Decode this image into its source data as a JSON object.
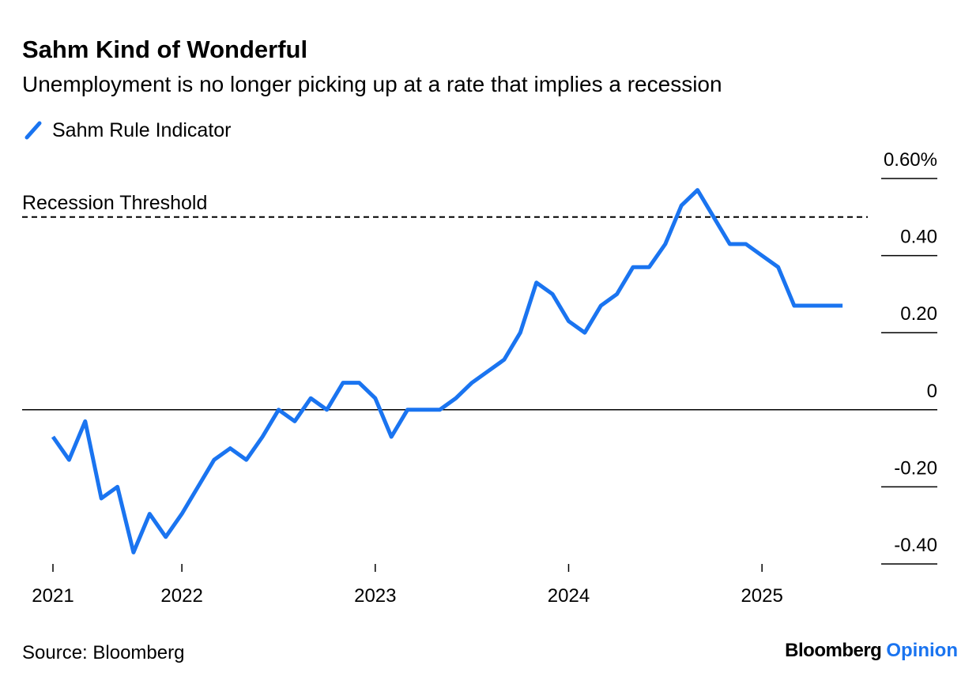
{
  "chart_data": {
    "type": "line",
    "title": "Sahm Kind of Wonderful",
    "subtitle": "Unemployment is no longer picking up at a rate that implies a recession",
    "categories": [
      "2021",
      null,
      null,
      null,
      null,
      null,
      null,
      null,
      "2022",
      null,
      null,
      null,
      null,
      null,
      null,
      null,
      null,
      null,
      null,
      null,
      "2023",
      null,
      null,
      null,
      null,
      null,
      null,
      null,
      null,
      null,
      null,
      null,
      "2024",
      null,
      null,
      null,
      null,
      null,
      null,
      null,
      null,
      null,
      null,
      null,
      "2025",
      null,
      null,
      null,
      null,
      null
    ],
    "series": [
      {
        "name": "Sahm Rule Indicator",
        "color": "#1a74f0",
        "values": [
          -0.07,
          -0.13,
          -0.03,
          -0.23,
          -0.2,
          -0.37,
          -0.27,
          -0.33,
          -0.27,
          -0.2,
          -0.13,
          -0.1,
          -0.13,
          -0.07,
          0,
          -0.03,
          0.03,
          0,
          0.07,
          0.07,
          0.03,
          -0.07,
          0,
          0,
          0,
          0.03,
          0.07,
          0.1,
          0.13,
          0.2,
          0.33,
          0.3,
          0.23,
          0.2,
          0.27,
          0.3,
          0.37,
          0.37,
          0.43,
          0.53,
          0.57,
          0.5,
          0.43,
          0.43,
          0.4,
          0.37,
          0.27,
          0.27,
          0.27,
          0.27
        ]
      }
    ],
    "threshold": {
      "label": "Recession Threshold",
      "value": 0.5
    },
    "ylim": [
      -0.4,
      0.6
    ],
    "yticks": [
      {
        "value": -0.4,
        "label": "-0.40"
      },
      {
        "value": -0.2,
        "label": "-0.20"
      },
      0,
      {
        "value": 0.2,
        "label": "0.20"
      },
      {
        "value": 0.4,
        "label": "0.40"
      },
      {
        "value": 0.6,
        "label": "0.60%"
      }
    ],
    "source": "Source: Bloomberg",
    "brand": "Bloomberg",
    "brand_suffix": "Opinion"
  }
}
